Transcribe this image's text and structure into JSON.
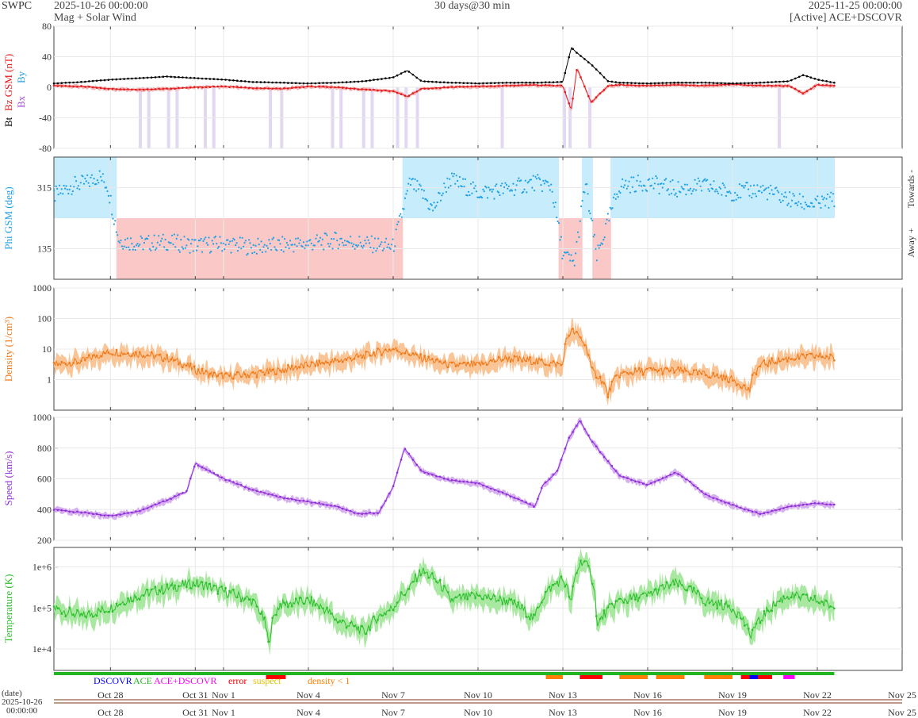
{
  "header": {
    "source": "SWPC",
    "start_time": "2025-10-26 00:00:00",
    "product": "Mag + Solar Wind",
    "resolution": "30 days@30 min",
    "end_time": "2025-11-25 00:00:00",
    "spacecraft": "[Active] ACE+DSCOVR"
  },
  "colors": {
    "bt": "#000000",
    "bz": "#e31a1c",
    "by": "#1fa0e6",
    "bx": "#a64ddb",
    "phi": "#1fa0e6",
    "phi_towards_fill": "#c7ecfb",
    "phi_away_fill": "#fbc8c8",
    "density": "#f07a1a",
    "density_fill": "#f9c596",
    "speed": "#9030d8",
    "speed_fill": "#d7b0f0",
    "temperature": "#2dbf2d",
    "temperature_fill": "#a8e8a0",
    "dscovr": "#0000ff",
    "ace": "#22b522",
    "ace_dscovr": "#ff00ff",
    "error": "#ff0000",
    "suspect": "#e6c000",
    "density_low": "#ff7f00",
    "grid": "#e8e8e8",
    "frame": "#444444"
  },
  "legend": {
    "dscovr": "DSCOVR",
    "ace": "ACE",
    "ace_dscovr": "ACE+DSCOVR",
    "error": "error",
    "suspect": "suspect",
    "density_low": "density < 1"
  },
  "bottom_axis": {
    "date_label": "(date)",
    "date_value": "2025-10-26",
    "time_value": "00:00:00"
  },
  "chart_data": [
    {
      "type": "line",
      "panel": "magnetic_field",
      "ylabel_parts": [
        "Bt",
        "Bz GSM (nT)",
        "Bx",
        "By"
      ],
      "ylim": [
        -80,
        80
      ],
      "yticks": [
        "80",
        "40",
        "0",
        "-40",
        "-80"
      ],
      "x_range": [
        "2025-10-26",
        "2025-11-25"
      ],
      "x_ticks": [
        "Oct 28",
        "Oct 31",
        "Nov 1",
        "Nov 4",
        "Nov 7",
        "Nov 10",
        "Nov 13",
        "Nov 16",
        "Nov 19",
        "Nov 22",
        "Nov 25"
      ],
      "x_tick_days": [
        2,
        5,
        6,
        9,
        12,
        15,
        18,
        21,
        24,
        27,
        30
      ],
      "data_end_day": 27.6,
      "series": [
        {
          "name": "Bt",
          "x": [
            0,
            1,
            2,
            3,
            4,
            5,
            6,
            7,
            8,
            9,
            10,
            11,
            12,
            12.5,
            13,
            14,
            15,
            16,
            17,
            18,
            18.3,
            18.5,
            19,
            19.6,
            20,
            21,
            22,
            23,
            24,
            25,
            26,
            26.5,
            27,
            27.6
          ],
          "y": [
            5,
            7,
            10,
            12,
            14,
            12,
            10,
            7,
            6,
            5,
            6,
            8,
            13,
            22,
            8,
            6,
            5,
            6,
            6,
            7,
            52,
            45,
            30,
            8,
            6,
            5,
            6,
            6,
            5,
            6,
            8,
            16,
            10,
            6
          ]
        },
        {
          "name": "Bz GSM",
          "x": [
            0,
            1,
            2,
            3,
            4,
            5,
            6,
            7,
            8,
            9,
            10,
            11,
            12,
            12.5,
            13,
            14,
            15,
            16,
            17,
            18,
            18.3,
            18.5,
            19,
            19.6,
            20,
            21,
            22,
            23,
            24,
            25,
            26,
            26.5,
            27,
            27.6
          ],
          "y": [
            2,
            1,
            -2,
            -3,
            -2,
            0,
            1,
            -1,
            -2,
            1,
            0,
            -3,
            -5,
            -12,
            -2,
            0,
            1,
            2,
            3,
            2,
            -30,
            25,
            -20,
            2,
            3,
            2,
            3,
            2,
            4,
            2,
            2,
            -8,
            3,
            2
          ]
        }
      ]
    },
    {
      "type": "scatter",
      "panel": "phi",
      "ylabel": "Phi GSM (deg)",
      "right_labels": [
        "Towards -",
        "Away +"
      ],
      "ylim": [
        45,
        405
      ],
      "yticks": [
        "315",
        "135"
      ],
      "series": [
        {
          "name": "Phi GSM",
          "x": [
            0,
            0.6,
            1.2,
            1.6,
            1.9,
            2.3,
            3,
            4,
            5,
            6,
            7,
            8,
            9,
            10,
            11,
            12,
            12.6,
            13,
            13.4,
            14,
            15,
            16,
            17,
            17.6,
            18,
            18.4,
            18.8,
            19.2,
            20,
            21,
            22,
            23,
            24,
            25,
            26,
            26.5,
            27,
            27.6
          ],
          "y": [
            290,
            320,
            330,
            350,
            320,
            160,
            150,
            155,
            145,
            150,
            140,
            145,
            150,
            160,
            150,
            140,
            330,
            300,
            250,
            340,
            300,
            310,
            330,
            320,
            120,
            90,
            330,
            110,
            320,
            330,
            310,
            320,
            300,
            310,
            280,
            270,
            265,
            280
          ]
        }
      ]
    },
    {
      "type": "area",
      "panel": "density",
      "ylabel": "Density (1/cm³)",
      "scale": "log",
      "ylim": [
        0.1,
        1000
      ],
      "yticks": [
        "1000",
        "100",
        "10",
        "1"
      ],
      "series": [
        {
          "name": "Density",
          "x": [
            0,
            1,
            2,
            3,
            4,
            5,
            5.5,
            6,
            7,
            8,
            9,
            10,
            11,
            12,
            13,
            14,
            15,
            16,
            17,
            18,
            18.3,
            19,
            19.6,
            20,
            21,
            22,
            23,
            24,
            24.6,
            25,
            26,
            27,
            27.6
          ],
          "y": [
            3,
            4,
            8,
            7,
            5,
            2,
            1.5,
            1.3,
            1.5,
            2,
            3,
            4,
            6,
            10,
            5,
            3,
            3,
            5,
            4,
            3,
            40,
            2,
            0.3,
            1.5,
            2,
            2,
            1.5,
            1,
            0.4,
            3,
            5,
            6,
            5
          ]
        }
      ]
    },
    {
      "type": "area",
      "panel": "speed",
      "ylabel": "Speed (km/s)",
      "ylim": [
        200,
        1000
      ],
      "yticks": [
        "1000",
        "800",
        "600",
        "400",
        "200"
      ],
      "series": [
        {
          "name": "Speed",
          "x": [
            0,
            1,
            2,
            3,
            4,
            4.7,
            5,
            6,
            7,
            8,
            9,
            10,
            10.8,
            11.5,
            12,
            12.4,
            13,
            14,
            15,
            16,
            17,
            17.3,
            17.8,
            18.2,
            18.6,
            19,
            20,
            21,
            22,
            22.5,
            23,
            24,
            25,
            26,
            27,
            27.6
          ],
          "y": [
            400,
            380,
            360,
            390,
            460,
            520,
            700,
            600,
            530,
            480,
            450,
            420,
            370,
            380,
            550,
            800,
            650,
            590,
            570,
            500,
            420,
            560,
            650,
            860,
            980,
            850,
            620,
            560,
            640,
            580,
            500,
            430,
            370,
            420,
            440,
            430
          ]
        }
      ]
    },
    {
      "type": "area",
      "panel": "temperature",
      "ylabel": "Temperature (K)",
      "scale": "log",
      "ylim": [
        3000,
        3000000
      ],
      "yticks": [
        "1e+6",
        "1e+5",
        "1e+4"
      ],
      "series": [
        {
          "name": "Temperature",
          "x": [
            0,
            1,
            2,
            3,
            4,
            5,
            6,
            7,
            7.6,
            8,
            9,
            10,
            11,
            12,
            12.6,
            13,
            14,
            15,
            16,
            17,
            18,
            18.3,
            18.7,
            19.2,
            20,
            21,
            22,
            23,
            24,
            24.6,
            25,
            26,
            27,
            27.6
          ],
          "y": [
            100000,
            60000,
            100000,
            200000,
            300000,
            400000,
            250000,
            150000,
            10000,
            120000,
            150000,
            50000,
            25000,
            100000,
            300000,
            800000,
            150000,
            200000,
            150000,
            50000,
            500000,
            100000,
            1500000,
            30000,
            150000,
            200000,
            400000,
            150000,
            100000,
            20000,
            50000,
            200000,
            150000,
            100000
          ]
        }
      ]
    }
  ]
}
